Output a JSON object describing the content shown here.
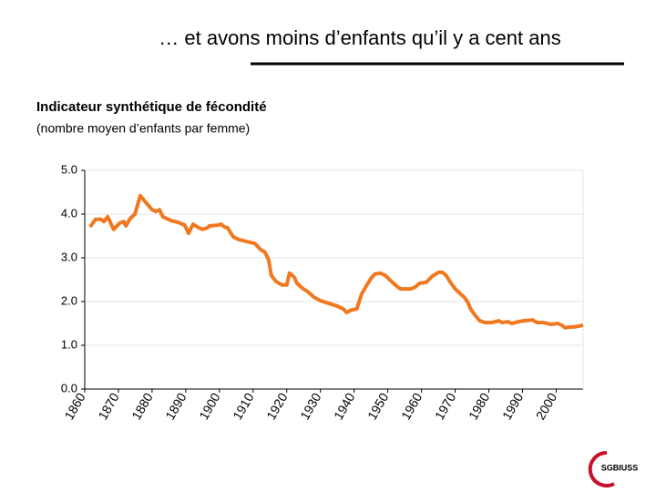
{
  "heading": "… et avons moins d’enfants qu’il y a cent ans",
  "logo": "SGBIUSS",
  "chart_data": {
    "type": "line",
    "title": "Indicateur synthétique de fécondité",
    "subtitle": "(nombre moyen d’enfants par femme)",
    "x": [
      1861.6,
      1863.2,
      1864.9,
      1865.7,
      1866.8,
      1868.6,
      1870.3,
      1871.6,
      1872.2,
      1873.5,
      1874.9,
      1876.5,
      1878.1,
      1880,
      1881.1,
      1882.2,
      1883.2,
      1885.7,
      1887.8,
      1889.7,
      1890.8,
      1892.2,
      1893.8,
      1895.1,
      1896.5,
      1897,
      1899.7,
      1900.5,
      1901.4,
      1902.4,
      1904.1,
      1905.7,
      1907.8,
      1910.5,
      1912.2,
      1913.5,
      1914.6,
      1915.4,
      1916.8,
      1918.6,
      1920,
      1920.8,
      1922.2,
      1923,
      1924.9,
      1926.2,
      1928.1,
      1930,
      1931.6,
      1934.9,
      1936.8,
      1937.8,
      1939.2,
      1940.8,
      1942.2,
      1943.8,
      1945.1,
      1946.2,
      1947.8,
      1949.2,
      1950,
      1951.1,
      1952.2,
      1953.8,
      1955.1,
      1956.8,
      1958.1,
      1959.5,
      1961.4,
      1963.2,
      1965.1,
      1966.2,
      1967.3,
      1968.6,
      1970,
      1971.4,
      1972.7,
      1973.8,
      1974.6,
      1975.9,
      1977.3,
      1978.9,
      1980.8,
      1983,
      1984,
      1985.7,
      1986.8,
      1988.9,
      1990.3,
      1993,
      1994.3,
      1996.2,
      1998.4,
      2000.5,
      2001.6,
      2002.7,
      2004,
      2005.4,
      2006.8,
      2008
    ],
    "series": [
      {
        "color": "#f07820",
        "values": [
          3.71,
          3.88,
          3.88,
          3.83,
          3.94,
          3.65,
          3.79,
          3.83,
          3.73,
          3.9,
          4.0,
          4.42,
          4.27,
          4.1,
          4.06,
          4.1,
          3.94,
          3.85,
          3.81,
          3.75,
          3.56,
          3.77,
          3.69,
          3.65,
          3.69,
          3.73,
          3.75,
          3.77,
          3.71,
          3.69,
          3.48,
          3.42,
          3.38,
          3.33,
          3.19,
          3.13,
          2.96,
          2.6,
          2.46,
          2.38,
          2.38,
          2.65,
          2.56,
          2.42,
          2.29,
          2.23,
          2.1,
          2.02,
          1.98,
          1.9,
          1.83,
          1.75,
          1.81,
          1.83,
          2.17,
          2.38,
          2.54,
          2.63,
          2.65,
          2.6,
          2.54,
          2.46,
          2.38,
          2.29,
          2.29,
          2.29,
          2.33,
          2.42,
          2.44,
          2.58,
          2.67,
          2.67,
          2.6,
          2.44,
          2.29,
          2.19,
          2.1,
          1.98,
          1.83,
          1.69,
          1.56,
          1.52,
          1.52,
          1.56,
          1.52,
          1.54,
          1.5,
          1.54,
          1.56,
          1.58,
          1.52,
          1.52,
          1.48,
          1.5,
          1.46,
          1.4,
          1.42,
          1.42,
          1.44,
          1.46
        ]
      }
    ],
    "xlim": [
      1860,
      2008
    ],
    "xticks": [
      1860,
      1870,
      1880,
      1890,
      1900,
      1910,
      1920,
      1930,
      1940,
      1950,
      1960,
      1970,
      1980,
      1990,
      2000
    ],
    "ylim": [
      0,
      5
    ],
    "yticks": [
      {
        "value": 0,
        "label": "0.0"
      },
      {
        "value": 1,
        "label": "1.0"
      },
      {
        "value": 2,
        "label": "2.0"
      },
      {
        "value": 3,
        "label": "3.0"
      },
      {
        "value": 4,
        "label": "4.0"
      },
      {
        "value": 5,
        "label": "5.0"
      }
    ],
    "grid": true
  }
}
